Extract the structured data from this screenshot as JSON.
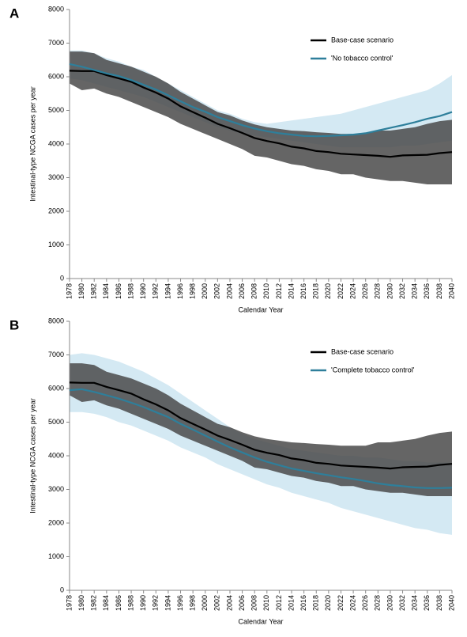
{
  "chart_data": [
    {
      "type": "line",
      "panel_label": "A",
      "ylabel": "Intestinal-type NCGA cases per year",
      "xlabel": "Calendar Year",
      "x": [
        1978,
        1980,
        1982,
        1984,
        1986,
        1988,
        1990,
        1992,
        1994,
        1996,
        1998,
        2000,
        2002,
        2004,
        2006,
        2008,
        2010,
        2012,
        2014,
        2016,
        2018,
        2020,
        2022,
        2024,
        2026,
        2028,
        2030,
        2032,
        2034,
        2036,
        2038,
        2040
      ],
      "xlim": [
        1978,
        2040
      ],
      "xticks": [
        1978,
        1980,
        1982,
        1984,
        1986,
        1988,
        1990,
        1992,
        1994,
        1996,
        1998,
        2000,
        2002,
        2004,
        2006,
        2008,
        2010,
        2012,
        2014,
        2016,
        2018,
        2020,
        2022,
        2024,
        2026,
        2028,
        2030,
        2032,
        2034,
        2036,
        2038,
        2040
      ],
      "ylim": [
        0,
        8000
      ],
      "yticks": [
        0,
        1000,
        2000,
        3000,
        4000,
        5000,
        6000,
        7000,
        8000
      ],
      "legend": "upper right",
      "bands": [
        {
          "color": "#d4e9f3",
          "upper": [
            6780,
            6780,
            6700,
            6550,
            6450,
            6300,
            6200,
            6000,
            5800,
            5600,
            5400,
            5200,
            5000,
            4900,
            4750,
            4650,
            4600,
            4650,
            4700,
            4750,
            4800,
            4850,
            4900,
            5000,
            5100,
            5200,
            5300,
            5400,
            5500,
            5600,
            5800,
            6050
          ],
          "lower": [
            5950,
            5900,
            5800,
            5700,
            5600,
            5500,
            5400,
            5250,
            5100,
            4950,
            4800,
            4650,
            4500,
            4400,
            4300,
            4250,
            4200,
            4150,
            4100,
            4050,
            4000,
            3950,
            3900,
            3900,
            3900,
            3900,
            3900,
            3950,
            3950,
            4000,
            4050,
            4100
          ]
        },
        {
          "color": "#4a4a4a",
          "upper": [
            6750,
            6750,
            6700,
            6500,
            6400,
            6300,
            6150,
            6000,
            5800,
            5550,
            5350,
            5150,
            4950,
            4850,
            4700,
            4580,
            4500,
            4450,
            4400,
            4380,
            4350,
            4330,
            4300,
            4300,
            4300,
            4400,
            4400,
            4450,
            4500,
            4600,
            4680,
            4720
          ],
          "lower": [
            5800,
            5600,
            5650,
            5500,
            5400,
            5250,
            5100,
            4950,
            4800,
            4600,
            4450,
            4300,
            4150,
            4000,
            3850,
            3650,
            3600,
            3500,
            3400,
            3350,
            3250,
            3200,
            3100,
            3100,
            3000,
            2950,
            2900,
            2900,
            2850,
            2800,
            2800,
            2800
          ]
        }
      ],
      "series": [
        {
          "name": "Base-case scenario",
          "color": "#000000",
          "values": [
            6180,
            6170,
            6170,
            6050,
            5950,
            5850,
            5680,
            5530,
            5350,
            5120,
            4950,
            4780,
            4600,
            4470,
            4330,
            4180,
            4090,
            4020,
            3920,
            3870,
            3790,
            3760,
            3710,
            3690,
            3670,
            3650,
            3620,
            3660,
            3670,
            3680,
            3730,
            3760
          ]
        },
        {
          "name": "'No tobacco control'",
          "color": "#2e7f9b",
          "values": [
            6380,
            6300,
            6200,
            6100,
            6020,
            5900,
            5760,
            5620,
            5450,
            5270,
            5100,
            4960,
            4800,
            4680,
            4560,
            4460,
            4380,
            4320,
            4280,
            4240,
            4230,
            4240,
            4260,
            4280,
            4320,
            4400,
            4480,
            4560,
            4650,
            4750,
            4830,
            4950
          ]
        }
      ]
    },
    {
      "type": "line",
      "panel_label": "B",
      "ylabel": "Intestinal-type NCGA cases per year",
      "xlabel": "Calendar Year",
      "x": [
        1978,
        1980,
        1982,
        1984,
        1986,
        1988,
        1990,
        1992,
        1994,
        1996,
        1998,
        2000,
        2002,
        2004,
        2006,
        2008,
        2010,
        2012,
        2014,
        2016,
        2018,
        2020,
        2022,
        2024,
        2026,
        2028,
        2030,
        2032,
        2034,
        2036,
        2038,
        2040
      ],
      "xlim": [
        1978,
        2040
      ],
      "xticks": [
        1978,
        1980,
        1982,
        1984,
        1986,
        1988,
        1990,
        1992,
        1994,
        1996,
        1998,
        2000,
        2002,
        2004,
        2006,
        2008,
        2010,
        2012,
        2014,
        2016,
        2018,
        2020,
        2022,
        2024,
        2026,
        2028,
        2030,
        2032,
        2034,
        2036,
        2038,
        2040
      ],
      "ylim": [
        0,
        8000
      ],
      "yticks": [
        0,
        1000,
        2000,
        3000,
        4000,
        5000,
        6000,
        7000,
        8000
      ],
      "legend": "upper right",
      "bands": [
        {
          "color": "#d4e9f3",
          "upper": [
            7000,
            7050,
            7000,
            6900,
            6800,
            6650,
            6500,
            6300,
            6100,
            5850,
            5600,
            5350,
            5100,
            4850,
            4650,
            4500,
            4400,
            4300,
            4200,
            4150,
            4100,
            4050,
            4000,
            4000,
            3950,
            3950,
            3900,
            3850,
            3850,
            3800,
            3800,
            3800
          ],
          "lower": [
            5300,
            5300,
            5250,
            5150,
            5000,
            4900,
            4750,
            4600,
            4450,
            4250,
            4100,
            3950,
            3750,
            3600,
            3450,
            3300,
            3150,
            3050,
            2900,
            2800,
            2700,
            2600,
            2450,
            2350,
            2250,
            2150,
            2050,
            1950,
            1850,
            1800,
            1700,
            1650
          ]
        },
        {
          "color": "#4a4a4a",
          "upper": [
            6750,
            6750,
            6700,
            6500,
            6400,
            6300,
            6150,
            6000,
            5800,
            5550,
            5350,
            5150,
            4950,
            4850,
            4700,
            4580,
            4500,
            4450,
            4400,
            4380,
            4350,
            4330,
            4300,
            4300,
            4300,
            4400,
            4400,
            4450,
            4500,
            4600,
            4680,
            4720
          ],
          "lower": [
            5800,
            5600,
            5650,
            5500,
            5400,
            5250,
            5100,
            4950,
            4800,
            4600,
            4450,
            4300,
            4150,
            4000,
            3850,
            3650,
            3600,
            3500,
            3400,
            3350,
            3250,
            3200,
            3100,
            3100,
            3000,
            2950,
            2900,
            2900,
            2850,
            2800,
            2800,
            2800
          ]
        }
      ],
      "series": [
        {
          "name": "Base-case scenario",
          "color": "#000000",
          "values": [
            6180,
            6170,
            6170,
            6050,
            5950,
            5850,
            5680,
            5530,
            5350,
            5120,
            4950,
            4780,
            4600,
            4470,
            4330,
            4180,
            4090,
            4020,
            3920,
            3870,
            3790,
            3760,
            3710,
            3690,
            3670,
            3650,
            3620,
            3660,
            3670,
            3680,
            3730,
            3760
          ]
        },
        {
          "name": "'Complete tobacco control'",
          "color": "#2e7f9b",
          "values": [
            5950,
            5980,
            5900,
            5800,
            5700,
            5580,
            5450,
            5300,
            5150,
            4950,
            4780,
            4600,
            4420,
            4250,
            4100,
            3950,
            3820,
            3720,
            3620,
            3550,
            3480,
            3420,
            3360,
            3310,
            3250,
            3180,
            3130,
            3100,
            3060,
            3040,
            3040,
            3050
          ]
        }
      ]
    }
  ]
}
